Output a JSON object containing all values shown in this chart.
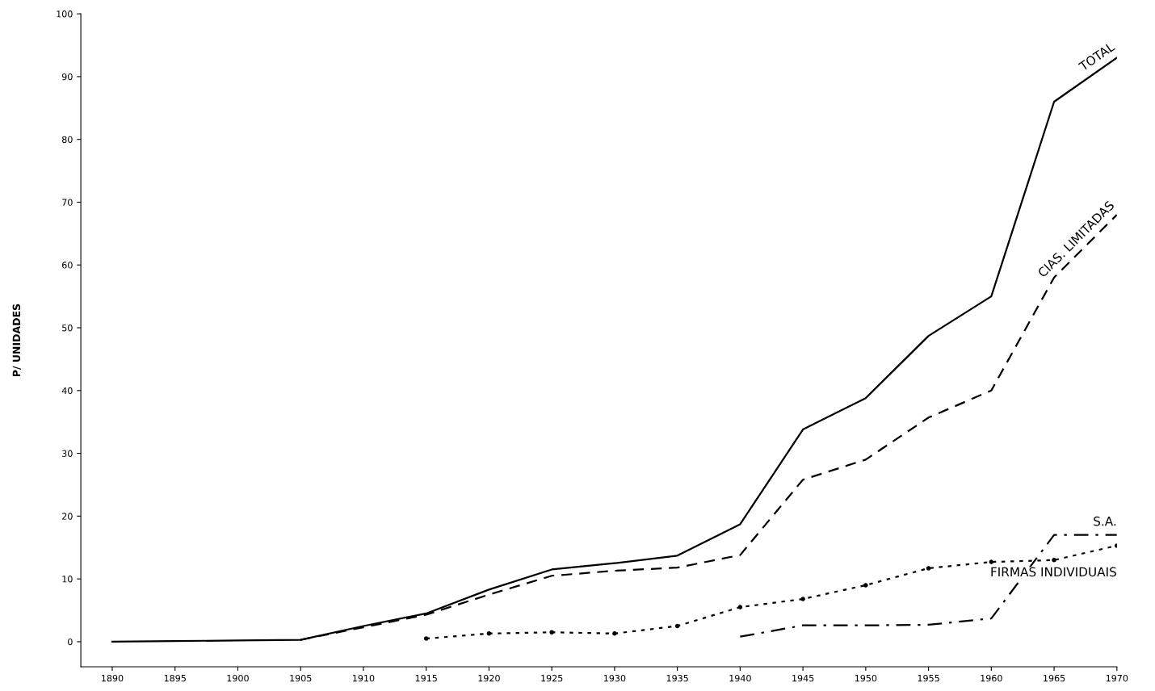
{
  "chart_data": {
    "type": "line",
    "ylabel": "P/ UNIDADES",
    "x": [
      1890,
      1895,
      1900,
      1905,
      1910,
      1915,
      1920,
      1925,
      1930,
      1935,
      1940,
      1945,
      1950,
      1955,
      1960,
      1965,
      1970
    ],
    "series": [
      {
        "name": "TOTAL",
        "color": "#000000",
        "line_style": "solid",
        "values": [
          0,
          0.1,
          0.2,
          0.3,
          2.5,
          4.5,
          8.3,
          11.5,
          12.5,
          13.7,
          18.7,
          33.8,
          38.8,
          48.7,
          55,
          86,
          93
        ]
      },
      {
        "name": "CIAS. LIMITADAS",
        "color": "#000000",
        "line_style": "dashed",
        "x": [
          1905,
          1910,
          1915,
          1920,
          1925,
          1930,
          1935,
          1940,
          1945,
          1950,
          1955,
          1960,
          1965,
          1970
        ],
        "values": [
          0.3,
          2.3,
          4.3,
          7.5,
          10.5,
          11.3,
          11.8,
          13.8,
          25.8,
          29,
          35.7,
          40,
          58,
          68
        ]
      },
      {
        "name": "S.A.",
        "color": "#000000",
        "line_style": "dashdot",
        "x": [
          1940,
          1945,
          1950,
          1955,
          1960,
          1965,
          1970
        ],
        "values": [
          0.8,
          2.6,
          2.6,
          2.7,
          3.7,
          17,
          17
        ]
      },
      {
        "name": "FIRMAS INDIVIDUAIS",
        "color": "#000000",
        "line_style": "dotted",
        "marker": "circle",
        "x": [
          1915,
          1920,
          1925,
          1930,
          1935,
          1940,
          1945,
          1950,
          1955,
          1960,
          1965,
          1970
        ],
        "values": [
          0.5,
          1.3,
          1.5,
          1.3,
          2.5,
          5.5,
          6.8,
          9,
          11.7,
          12.7,
          13,
          15.3
        ]
      }
    ],
    "xlim": [
      1887.5,
      1970
    ],
    "ylim": [
      -4,
      100
    ],
    "xticks": [
      1890,
      1895,
      1900,
      1905,
      1910,
      1915,
      1920,
      1925,
      1930,
      1935,
      1940,
      1945,
      1950,
      1955,
      1960,
      1965,
      1970
    ],
    "yticks": [
      0,
      10,
      20,
      30,
      40,
      50,
      60,
      70,
      80,
      90,
      100
    ],
    "grid": false,
    "legend": false
  }
}
